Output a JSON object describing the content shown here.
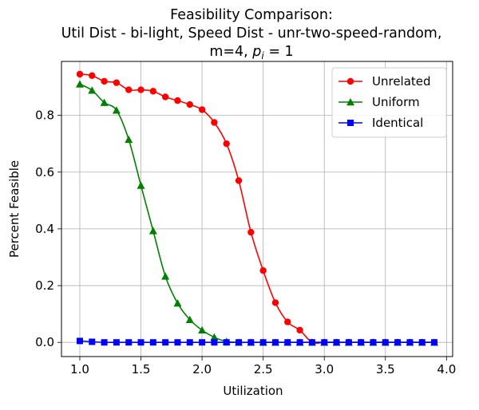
{
  "chart_data": {
    "type": "line",
    "title": {
      "line1": "Feasibility Comparison:",
      "line2": "Util Dist - bi-light, Speed Dist - unr-two-speed-random,",
      "line3_prefix": "m=4, ",
      "line3_var": "p",
      "line3_sub": "i",
      "line3_suffix": " = 1"
    },
    "xlabel": "Utilization",
    "ylabel": "Percent Feasible",
    "xlim": [
      0.85,
      4.05
    ],
    "ylim": [
      -0.05,
      0.99
    ],
    "xticks": [
      {
        "value": 1.0,
        "label": "1.0"
      },
      {
        "value": 1.5,
        "label": "1.5"
      },
      {
        "value": 2.0,
        "label": "2.0"
      },
      {
        "value": 2.5,
        "label": "2.5"
      },
      {
        "value": 3.0,
        "label": "3.0"
      },
      {
        "value": 3.5,
        "label": "3.5"
      },
      {
        "value": 4.0,
        "label": "4.0"
      }
    ],
    "yticks": [
      {
        "value": 0.0,
        "label": "0.0"
      },
      {
        "value": 0.2,
        "label": "0.2"
      },
      {
        "value": 0.4,
        "label": "0.4"
      },
      {
        "value": 0.6,
        "label": "0.6"
      },
      {
        "value": 0.8,
        "label": "0.8"
      }
    ],
    "grid": true,
    "legend_position": "top-right",
    "x": [
      1.0,
      1.1,
      1.2,
      1.3,
      1.4,
      1.5,
      1.6,
      1.7,
      1.8,
      1.9,
      2.0,
      2.1,
      2.2,
      2.3,
      2.4,
      2.5,
      2.6,
      2.7,
      2.8,
      2.9,
      3.0,
      3.1,
      3.2,
      3.3,
      3.4,
      3.5,
      3.6,
      3.7,
      3.8,
      3.9
    ],
    "series": [
      {
        "name": "Unrelated",
        "color": "#ff0000",
        "marker": "circle",
        "values": [
          0.945,
          0.94,
          0.92,
          0.915,
          0.89,
          0.89,
          0.885,
          0.865,
          0.852,
          0.838,
          0.82,
          0.775,
          0.7,
          0.57,
          0.388,
          0.253,
          0.14,
          0.072,
          0.043,
          0.0,
          0.0,
          0.0,
          0.0,
          0.0,
          0.0,
          0.0,
          0.0,
          0.0,
          0.0,
          0.0
        ]
      },
      {
        "name": "Uniform",
        "color": "#008000",
        "marker": "triangle",
        "values": [
          0.91,
          0.888,
          0.845,
          0.818,
          0.715,
          0.553,
          0.393,
          0.233,
          0.138,
          0.08,
          0.043,
          0.018,
          0.003,
          0.0,
          0.0,
          0.0,
          0.0,
          0.0,
          0.0,
          0.0,
          0.0,
          0.0,
          0.0,
          0.0,
          0.0,
          0.0,
          0.0,
          0.0,
          0.0,
          0.0
        ]
      },
      {
        "name": "Identical",
        "color": "#0000ff",
        "marker": "square",
        "values": [
          0.005,
          0.002,
          0.0,
          0.0,
          0.0,
          0.0,
          0.0,
          0.0,
          0.0,
          0.0,
          0.0,
          0.0,
          0.0,
          0.0,
          0.0,
          0.0,
          0.0,
          0.0,
          0.0,
          0.0,
          0.0,
          0.0,
          0.0,
          0.0,
          0.0,
          0.0,
          0.0,
          0.0,
          0.0,
          0.0
        ]
      }
    ]
  }
}
